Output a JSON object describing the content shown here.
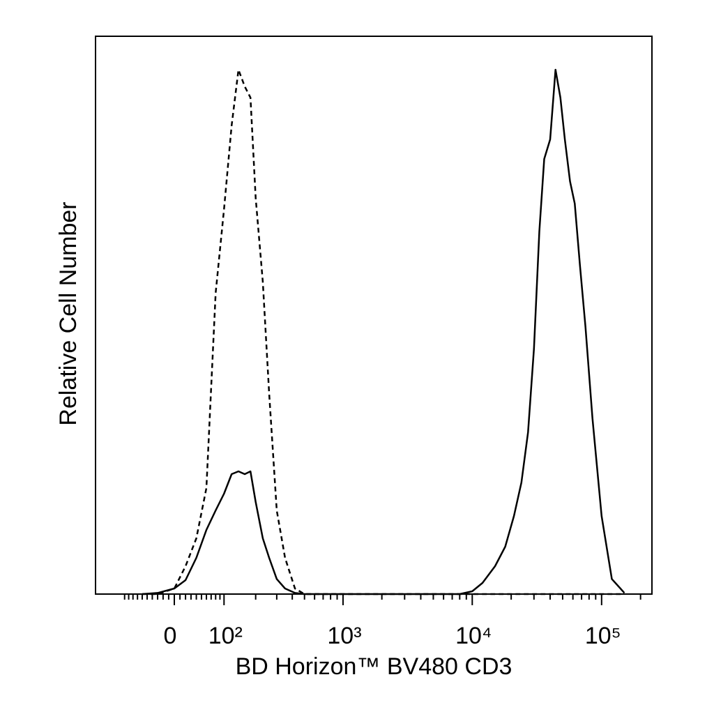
{
  "chart_data": {
    "type": "line",
    "xlabel": "BD Horizon™ BV480 CD3",
    "ylabel": "Relative Cell Number",
    "xscale": "biexponential",
    "xlim": [
      -190,
      245000
    ],
    "ylim": [
      0,
      100
    ],
    "xticks": [
      0,
      {
        "value": 100,
        "label": "10²"
      },
      {
        "value": 1000,
        "label": "10³"
      },
      {
        "value": 10000,
        "label": "10⁴"
      },
      {
        "value": 100000,
        "label": "10⁵"
      }
    ],
    "xminorticks": [
      -100,
      -90,
      -80,
      -70,
      -60,
      -50,
      -40,
      -30,
      -20,
      -10,
      10,
      20,
      30,
      40,
      50,
      60,
      70,
      80,
      90,
      200,
      300,
      400,
      500,
      600,
      700,
      800,
      900,
      2000,
      3000,
      4000,
      5000,
      6000,
      7000,
      8000,
      9000,
      20000,
      30000,
      40000,
      50000,
      60000,
      70000,
      80000,
      90000,
      200000
    ],
    "x": [
      -60,
      -30,
      0,
      20,
      40,
      60,
      80,
      100,
      120,
      140,
      160,
      180,
      200,
      230,
      260,
      300,
      350,
      420,
      500,
      700,
      1000,
      3000,
      8000,
      10000,
      12000,
      15000,
      18000,
      21000,
      24000,
      27000,
      30000,
      33000,
      36000,
      40000,
      44000,
      48000,
      52000,
      57000,
      62000,
      68000,
      75000,
      85000,
      100000,
      120000,
      150000
    ],
    "series": [
      {
        "color": "#000000",
        "dashed": true,
        "values": [
          0,
          0,
          1,
          5,
          10,
          19,
          54,
          69,
          84,
          94,
          91,
          89,
          71,
          56,
          36,
          15,
          6.5,
          1,
          0,
          0,
          0,
          0,
          0,
          0,
          0,
          0,
          0,
          0,
          0,
          0,
          0,
          0,
          0,
          0,
          0,
          0,
          0,
          0,
          0,
          0,
          0,
          0,
          0,
          0,
          0
        ]
      },
      {
        "color": "#000000",
        "dashed": false,
        "values": [
          0,
          0.2,
          1,
          2.5,
          6.5,
          11.5,
          15,
          18,
          21.5,
          22,
          21.5,
          22,
          16.5,
          10,
          6.5,
          2.7,
          1,
          0.2,
          0,
          0,
          0,
          0,
          0,
          0.5,
          2,
          5,
          8.5,
          14,
          20,
          29,
          44,
          65,
          78,
          81.5,
          94,
          89,
          81.5,
          74,
          70,
          59,
          48,
          31.5,
          14,
          2.7,
          0.2
        ]
      }
    ]
  }
}
